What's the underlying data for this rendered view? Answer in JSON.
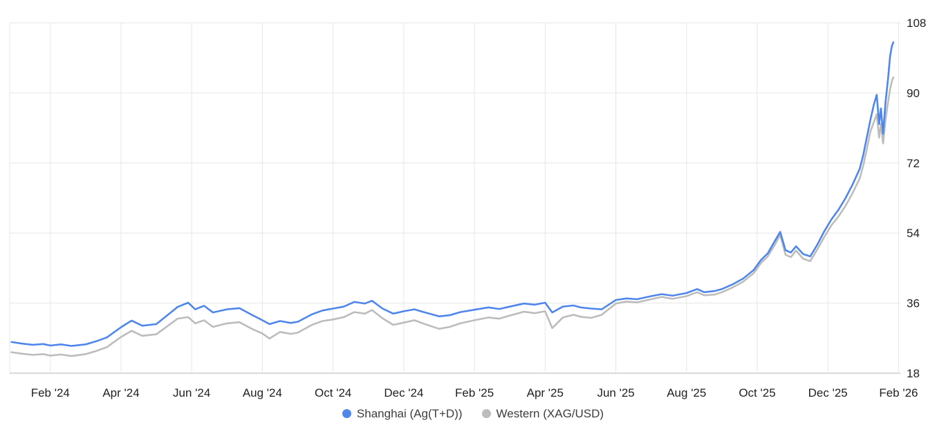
{
  "chart_data": {
    "type": "line",
    "title": "",
    "x_unit": "months since Feb 2024",
    "grid": true,
    "legend_position": "bottom",
    "colors": {
      "grid": "#e6e6e6",
      "axis_line": "#b3b3b3",
      "tick_text": "#1f1f1f",
      "background": "#ffffff"
    },
    "x_axis": {
      "min": -1.15,
      "max": 24.05,
      "ticks": [
        {
          "x": 0,
          "label": "Feb '24"
        },
        {
          "x": 2,
          "label": "Apr '24"
        },
        {
          "x": 4,
          "label": "Jun '24"
        },
        {
          "x": 6,
          "label": "Aug '24"
        },
        {
          "x": 8,
          "label": "Oct '24"
        },
        {
          "x": 10,
          "label": "Dec '24"
        },
        {
          "x": 12,
          "label": "Feb '25"
        },
        {
          "x": 14,
          "label": "Apr '25"
        },
        {
          "x": 16,
          "label": "Jun '25"
        },
        {
          "x": 18,
          "label": "Aug '25"
        },
        {
          "x": 20,
          "label": "Oct '25"
        },
        {
          "x": 22,
          "label": "Dec '25"
        },
        {
          "x": 24,
          "label": "Feb '26"
        }
      ]
    },
    "y_axis": {
      "min": 18,
      "max": 108,
      "ticks": [
        18,
        36,
        54,
        72,
        90,
        108
      ]
    },
    "x": [
      -1.1,
      -0.8,
      -0.5,
      -0.2,
      0,
      0.3,
      0.6,
      1,
      1.3,
      1.6,
      2,
      2.3,
      2.6,
      3,
      3.3,
      3.6,
      3.9,
      4.1,
      4.35,
      4.6,
      5,
      5.35,
      5.7,
      6,
      6.2,
      6.5,
      6.8,
      7,
      7.4,
      7.7,
      8,
      8.3,
      8.6,
      8.9,
      9.1,
      9.4,
      9.7,
      10,
      10.3,
      10.6,
      11,
      11.3,
      11.6,
      12,
      12.4,
      12.7,
      13,
      13.4,
      13.7,
      14,
      14.2,
      14.5,
      14.8,
      15,
      15.3,
      15.6,
      16,
      16.3,
      16.6,
      17,
      17.3,
      17.6,
      18,
      18.3,
      18.5,
      18.8,
      19,
      19.3,
      19.6,
      19.9,
      20.1,
      20.3,
      20.5,
      20.65,
      20.8,
      20.95,
      21.1,
      21.3,
      21.5,
      21.7,
      21.9,
      22.1,
      22.3,
      22.5,
      22.7,
      22.9,
      23,
      23.1,
      23.2,
      23.3,
      23.38,
      23.45,
      23.5,
      23.56,
      23.63,
      23.7,
      23.76,
      23.81,
      23.85
    ],
    "series": [
      {
        "name": "Shanghai (Ag(T+D))",
        "color": "#4e86ec",
        "values": [
          26.0,
          25.6,
          25.3,
          25.5,
          25.1,
          25.4,
          25.0,
          25.4,
          26.2,
          27.2,
          29.8,
          31.5,
          30.2,
          30.6,
          32.8,
          35.0,
          36.1,
          34.4,
          35.3,
          33.6,
          34.4,
          34.7,
          33.0,
          31.6,
          30.6,
          31.4,
          30.9,
          31.2,
          33.1,
          34.1,
          34.6,
          35.1,
          36.3,
          35.9,
          36.6,
          34.6,
          33.3,
          33.9,
          34.4,
          33.6,
          32.6,
          32.9,
          33.7,
          34.3,
          34.9,
          34.5,
          35.1,
          35.9,
          35.6,
          36.1,
          33.6,
          35.1,
          35.4,
          34.9,
          34.6,
          34.4,
          36.8,
          37.2,
          37.0,
          37.8,
          38.3,
          37.9,
          38.6,
          39.6,
          38.8,
          39.1,
          39.6,
          40.8,
          42.3,
          44.5,
          47.0,
          48.8,
          52.0,
          54.3,
          49.6,
          49.0,
          50.6,
          48.6,
          48.0,
          51.0,
          54.5,
          57.5,
          60.0,
          63.0,
          66.5,
          70.5,
          74.0,
          78.5,
          83.0,
          87.0,
          89.5,
          82.0,
          86.0,
          79.5,
          87.5,
          93.5,
          99.5,
          102.0,
          103.0
        ]
      },
      {
        "name": "Western (XAG/USD)",
        "color": "#bcbcbc",
        "values": [
          23.4,
          23.0,
          22.7,
          22.9,
          22.5,
          22.8,
          22.4,
          22.9,
          23.7,
          24.7,
          27.3,
          28.9,
          27.6,
          28.0,
          30.0,
          32.0,
          32.4,
          30.8,
          31.6,
          29.9,
          30.8,
          31.1,
          29.4,
          28.2,
          26.9,
          28.6,
          28.1,
          28.4,
          30.4,
          31.4,
          31.8,
          32.4,
          33.7,
          33.3,
          34.2,
          32.1,
          30.4,
          31.0,
          31.6,
          30.6,
          29.4,
          29.9,
          30.8,
          31.6,
          32.3,
          32.0,
          32.8,
          33.8,
          33.4,
          33.9,
          29.6,
          32.3,
          33.0,
          32.5,
          32.2,
          33.0,
          35.9,
          36.4,
          36.2,
          37.0,
          37.6,
          37.1,
          37.8,
          38.8,
          38.0,
          38.2,
          38.8,
          40.0,
          41.5,
          43.7,
          46.2,
          48.0,
          51.0,
          53.5,
          48.4,
          47.8,
          49.5,
          47.4,
          46.8,
          49.8,
          53.0,
          56.0,
          58.3,
          61.0,
          64.3,
          68.0,
          71.3,
          75.5,
          80.0,
          82.5,
          84.5,
          78.5,
          82.0,
          77.0,
          83.0,
          87.5,
          91.0,
          93.0,
          94.0
        ]
      }
    ]
  }
}
